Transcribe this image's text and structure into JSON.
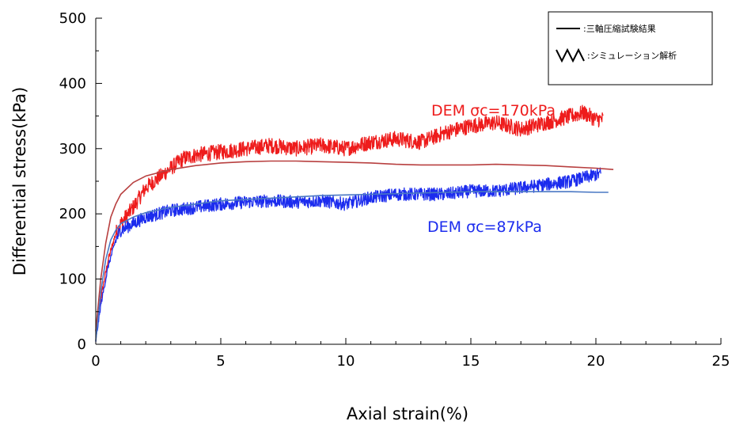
{
  "chart_data": {
    "type": "line",
    "xlabel": "Axial strain(%)",
    "ylabel": "Differential stress(kPa)",
    "xlim": [
      0,
      25
    ],
    "ylim": [
      0,
      500
    ],
    "xticks": [
      0,
      5,
      10,
      15,
      20,
      25
    ],
    "yticks": [
      0,
      100,
      200,
      300,
      400,
      500
    ],
    "grid": false,
    "legend": {
      "placement": "top-right",
      "entries": [
        {
          "symbol": "straight-line",
          "label": ":三軸圧縮試験結果"
        },
        {
          "symbol": "zigzag-line",
          "label": ":シミュレーション解析"
        }
      ]
    },
    "annotations": [
      {
        "text": "DEM σc=170kPa",
        "color": "#ee1c1c"
      },
      {
        "text": "DEM σc=87kPa",
        "color": "#1c2cee"
      }
    ],
    "series": [
      {
        "style": "simulation",
        "color": "#ee1c1c",
        "noise": 12,
        "x": [
          0,
          0.2,
          0.5,
          0.8,
          1.0,
          1.5,
          2.0,
          2.5,
          3.0,
          3.5,
          4.0,
          5.0,
          6.0,
          7.0,
          8.0,
          9.0,
          10.0,
          11.0,
          12.0,
          13.0,
          14.0,
          15.0,
          16.0,
          17.0,
          18.0,
          19.0,
          19.5,
          20.0,
          20.3
        ],
        "y": [
          20,
          70,
          130,
          170,
          185,
          210,
          240,
          255,
          270,
          285,
          290,
          295,
          300,
          305,
          300,
          305,
          300,
          310,
          315,
          310,
          325,
          335,
          340,
          330,
          340,
          350,
          355,
          345,
          345
        ]
      },
      {
        "style": "simulation",
        "color": "#1c2cee",
        "noise": 10,
        "x": [
          0,
          0.2,
          0.5,
          0.8,
          1.0,
          1.5,
          2.0,
          3.0,
          4.0,
          5.0,
          6.0,
          7.0,
          8.0,
          9.0,
          10.0,
          11.0,
          12.0,
          13.0,
          14.0,
          15.0,
          16.0,
          17.0,
          18.0,
          19.0,
          19.5,
          20.0,
          20.2
        ],
        "y": [
          5,
          60,
          120,
          160,
          175,
          185,
          195,
          205,
          210,
          215,
          218,
          220,
          218,
          220,
          215,
          225,
          230,
          230,
          230,
          235,
          235,
          240,
          245,
          250,
          255,
          260,
          262
        ]
      },
      {
        "style": "test",
        "color": "#b84040",
        "x": [
          0,
          0.2,
          0.4,
          0.6,
          0.8,
          1.0,
          1.5,
          2.0,
          3.0,
          4.0,
          5.0,
          6.0,
          7.0,
          8.0,
          9.0,
          10.0,
          11.0,
          12.0,
          13.0,
          14.0,
          15.0,
          16.0,
          17.0,
          18.0,
          19.0,
          20.0,
          20.7
        ],
        "y": [
          20,
          100,
          155,
          195,
          215,
          230,
          248,
          258,
          268,
          274,
          278,
          280,
          281,
          281,
          280,
          279,
          278,
          276,
          275,
          275,
          275,
          276,
          275,
          274,
          272,
          270,
          268
        ]
      },
      {
        "style": "test",
        "color": "#4a78c4",
        "x": [
          0,
          0.2,
          0.4,
          0.6,
          0.8,
          1.0,
          1.5,
          2.0,
          3.0,
          4.0,
          5.0,
          6.0,
          7.0,
          8.0,
          9.0,
          10.0,
          11.0,
          12.0,
          13.0,
          14.0,
          15.0,
          16.0,
          17.0,
          18.0,
          19.0,
          20.0,
          20.5
        ],
        "y": [
          5,
          80,
          130,
          160,
          175,
          185,
          195,
          202,
          210,
          215,
          220,
          222,
          224,
          226,
          228,
          229,
          230,
          231,
          232,
          233,
          234,
          234,
          234,
          234,
          234,
          233,
          233
        ]
      }
    ]
  }
}
